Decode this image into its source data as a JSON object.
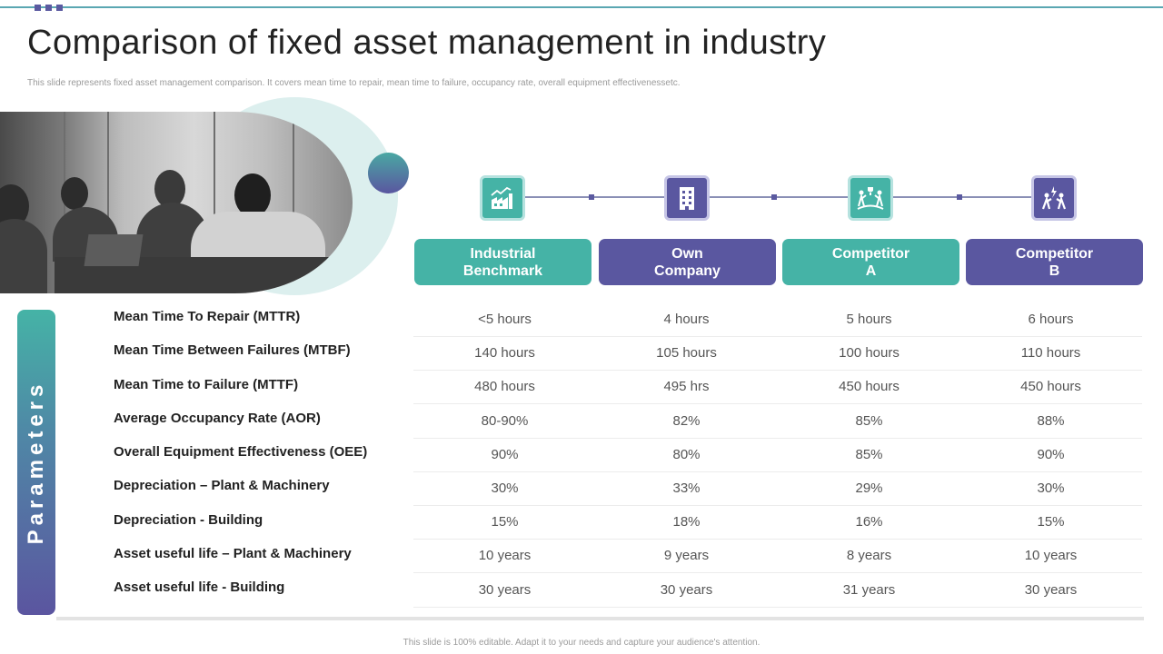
{
  "title": "Comparison of fixed asset management in industry",
  "subtitle": "This slide represents fixed asset management comparison. It covers mean time to repair, mean time to failure, occupancy rate, overall equipment effectivenessetc.",
  "side_label": "Parameters",
  "columns": [
    {
      "label": "Industrial\nBenchmark",
      "icon": "factory-growth-icon",
      "color": "#45b3a6"
    },
    {
      "label": "Own\nCompany",
      "icon": "office-building-icon",
      "color": "#5a57a0"
    },
    {
      "label": "Competitor\nA",
      "icon": "trophy-team-icon",
      "color": "#45b3a6"
    },
    {
      "label": "Competitor\nB",
      "icon": "competition-people-icon",
      "color": "#5a57a0"
    }
  ],
  "rows": [
    {
      "param": "Mean Time To Repair (MTTR)",
      "values": [
        "<5 hours",
        "4 hours",
        "5 hours",
        "6 hours"
      ]
    },
    {
      "param": "Mean Time Between Failures (MTBF)",
      "values": [
        "140 hours",
        "105 hours",
        "100 hours",
        "110 hours"
      ]
    },
    {
      "param": "Mean Time to Failure (MTTF)",
      "values": [
        "480 hours",
        "495 hrs",
        "450 hours",
        "450 hours"
      ]
    },
    {
      "param": "Average Occupancy Rate (AOR)",
      "values": [
        "80-90%",
        "82%",
        "85%",
        "88%"
      ]
    },
    {
      "param": "Overall Equipment Effectiveness (OEE)",
      "values": [
        "90%",
        "80%",
        "85%",
        "90%"
      ]
    },
    {
      "param": "Depreciation – Plant & Machinery",
      "values": [
        "30%",
        "33%",
        "29%",
        "30%"
      ]
    },
    {
      "param": "Depreciation - Building",
      "values": [
        "15%",
        "18%",
        "16%",
        "15%"
      ]
    },
    {
      "param": "Asset useful life – Plant & Machinery",
      "values": [
        "10 years",
        "9 years",
        "8 years",
        "10 years"
      ]
    },
    {
      "param": "Asset useful life - Building",
      "values": [
        "30 years",
        "30 years",
        "31 years",
        "30 years"
      ]
    }
  ],
  "footer": "This slide is 100% editable. Adapt it to your needs and capture your audience's attention."
}
